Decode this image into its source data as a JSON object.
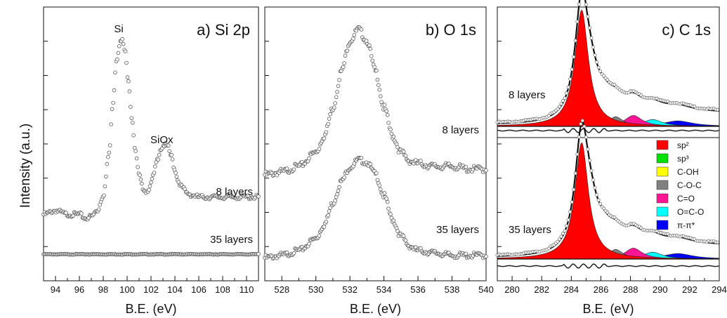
{
  "y_axis_label": "Intensity (a.u.)",
  "chart_data": [
    {
      "type": "scatter",
      "title": "a) Si 2p",
      "xlabel": "B.E. (eV)",
      "ylabel": "Intensity (a.u.)",
      "xlim": [
        93,
        111
      ],
      "x_ticks": [
        94,
        96,
        98,
        100,
        102,
        104,
        106,
        108,
        110
      ],
      "annotations": [
        "Si",
        "SiOx"
      ],
      "series": [
        {
          "name": "8 layers",
          "x": [
            93,
            94,
            95,
            96,
            96.5,
            97,
            97.5,
            98,
            98.5,
            98.8,
            99.1,
            99.4,
            99.6,
            99.8,
            100.1,
            100.4,
            100.7,
            101,
            101.3,
            101.6,
            101.9,
            102.2,
            102.5,
            102.8,
            103.1,
            103.4,
            103.7,
            104,
            104.3,
            104.6,
            105,
            105.5,
            106,
            107,
            108,
            109,
            110,
            111
          ],
          "y": [
            0.1,
            0.12,
            0.1,
            0.1,
            0.08,
            0.09,
            0.12,
            0.2,
            0.42,
            0.68,
            0.9,
            0.99,
            1.0,
            0.95,
            0.8,
            0.6,
            0.42,
            0.3,
            0.24,
            0.22,
            0.24,
            0.3,
            0.38,
            0.44,
            0.46,
            0.45,
            0.4,
            0.33,
            0.27,
            0.24,
            0.21,
            0.2,
            0.19,
            0.19,
            0.19,
            0.19,
            0.19,
            0.19
          ]
        },
        {
          "name": "35 layers",
          "x": [
            93,
            95,
            97,
            99,
            101,
            103,
            105,
            107,
            109,
            111
          ],
          "y": [
            0.02,
            0.02,
            0.02,
            0.02,
            0.02,
            0.02,
            0.02,
            0.02,
            0.02,
            0.02
          ]
        }
      ]
    },
    {
      "type": "scatter",
      "title": "b) O 1s",
      "xlabel": "B.E. (eV)",
      "xlim": [
        527,
        540
      ],
      "x_ticks": [
        528,
        530,
        532,
        534,
        536,
        538,
        540
      ],
      "series": [
        {
          "name": "8 layers",
          "x": [
            527,
            528,
            529,
            530,
            530.5,
            531,
            531.5,
            532,
            532.5,
            533,
            533.5,
            534,
            534.5,
            535,
            535.5,
            536,
            537,
            538,
            539,
            540
          ],
          "y": [
            0.48,
            0.49,
            0.51,
            0.56,
            0.62,
            0.72,
            0.85,
            0.96,
            1.0,
            0.96,
            0.85,
            0.72,
            0.62,
            0.56,
            0.53,
            0.52,
            0.51,
            0.51,
            0.5,
            0.5
          ]
        },
        {
          "name": "35 layers",
          "x": [
            527,
            528,
            529,
            530,
            530.5,
            531,
            531.5,
            532,
            532.5,
            533,
            533.5,
            534,
            534.5,
            535,
            535.5,
            536,
            537,
            538,
            539,
            540
          ],
          "y": [
            0.02,
            0.03,
            0.05,
            0.1,
            0.16,
            0.25,
            0.34,
            0.4,
            0.43,
            0.42,
            0.37,
            0.28,
            0.18,
            0.11,
            0.07,
            0.05,
            0.04,
            0.03,
            0.03,
            0.03
          ]
        }
      ]
    },
    {
      "type": "area",
      "title": "c) C 1s",
      "xlabel": "B.E. (eV)",
      "xlim": [
        279,
        294
      ],
      "x_ticks": [
        280,
        282,
        284,
        286,
        288,
        290,
        292,
        294
      ],
      "legend": {
        "position": "right",
        "entries": [
          {
            "label": "sp²",
            "color": "#ff0000"
          },
          {
            "label": "sp³",
            "color": "#00e000"
          },
          {
            "label": "C-OH",
            "color": "#ffff00"
          },
          {
            "label": "C-O-C",
            "color": "#808080"
          },
          {
            "label": "C=O",
            "color": "#ff1493"
          },
          {
            "label": "O=C-O",
            "color": "#00ffff"
          },
          {
            "label": "π-π*",
            "color": "#0000ff"
          }
        ]
      },
      "components": [
        {
          "name": "sp²",
          "center": 284.7,
          "width": 0.55,
          "height": 0.85
        },
        {
          "name": "sp³",
          "center": 285.3,
          "width": 0.6,
          "height": 0.18
        },
        {
          "name": "C-OH",
          "center": 286.2,
          "width": 0.6,
          "height": 0.07
        },
        {
          "name": "C-O-C",
          "center": 287.0,
          "width": 0.6,
          "height": 0.07
        },
        {
          "name": "C=O",
          "center": 288.2,
          "width": 0.7,
          "height": 0.08
        },
        {
          "name": "O=C-O",
          "center": 289.5,
          "width": 0.8,
          "height": 0.05
        },
        {
          "name": "π-π*",
          "center": 291.2,
          "width": 1.2,
          "height": 0.04
        }
      ],
      "series": [
        {
          "name": "8 layers"
        },
        {
          "name": "35 layers"
        }
      ]
    }
  ]
}
